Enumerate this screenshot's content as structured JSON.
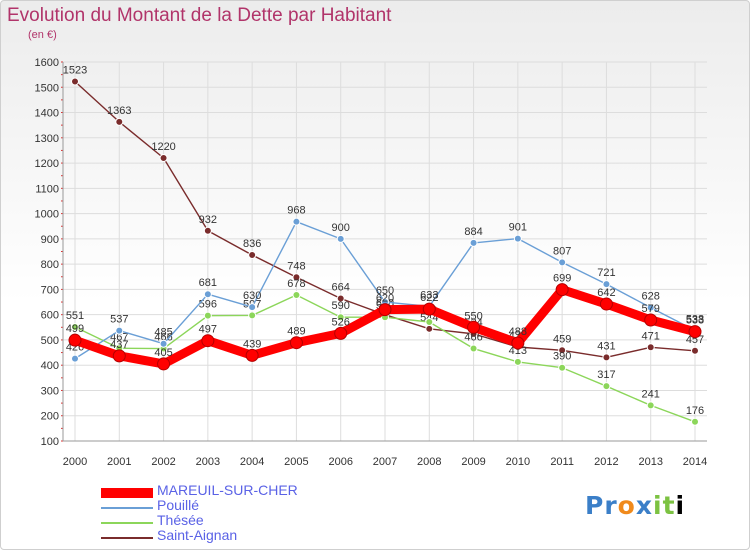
{
  "title": "Evolution du Montant de la Dette par Habitant",
  "subtitle": "(en €)",
  "logo": "Proxiti",
  "chart_data": {
    "type": "line",
    "x": [
      "2000",
      "2001",
      "2002",
      "2003",
      "2004",
      "2005",
      "2006",
      "2007",
      "2008",
      "2009",
      "2010",
      "2011",
      "2012",
      "2013",
      "2014"
    ],
    "ylim": [
      100,
      1600
    ],
    "yticks": [
      100,
      200,
      300,
      400,
      500,
      600,
      700,
      800,
      900,
      1000,
      1100,
      1200,
      1300,
      1400,
      1500,
      1600
    ],
    "grid": true,
    "legend_position": "bottom-left",
    "series": [
      {
        "name": "Saint-Aignan",
        "color": "#7a2c2c",
        "values": [
          1523,
          1363,
          1220,
          932,
          836,
          748,
          664,
          600,
          544,
          524,
          472,
          459,
          431,
          471,
          457
        ]
      },
      {
        "name": "Thésée",
        "color": "#8cd65a",
        "values": [
          551,
          467,
          466,
          596,
          597,
          678,
          590,
          590,
          571,
          466,
          413,
          390,
          317,
          241,
          176
        ]
      },
      {
        "name": "Pouillé",
        "color": "#6a9fd6",
        "values": [
          426,
          537,
          485,
          681,
          630,
          968,
          900,
          650,
          633,
          884,
          901,
          807,
          721,
          628,
          538
        ]
      },
      {
        "name": "MAREUIL-SUR-CHER",
        "color": "#ff0000",
        "values": [
          499,
          437,
          405,
          497,
          439,
          489,
          526,
          620,
          622,
          550,
          488,
          699,
          642,
          579,
          533
        ]
      }
    ]
  }
}
